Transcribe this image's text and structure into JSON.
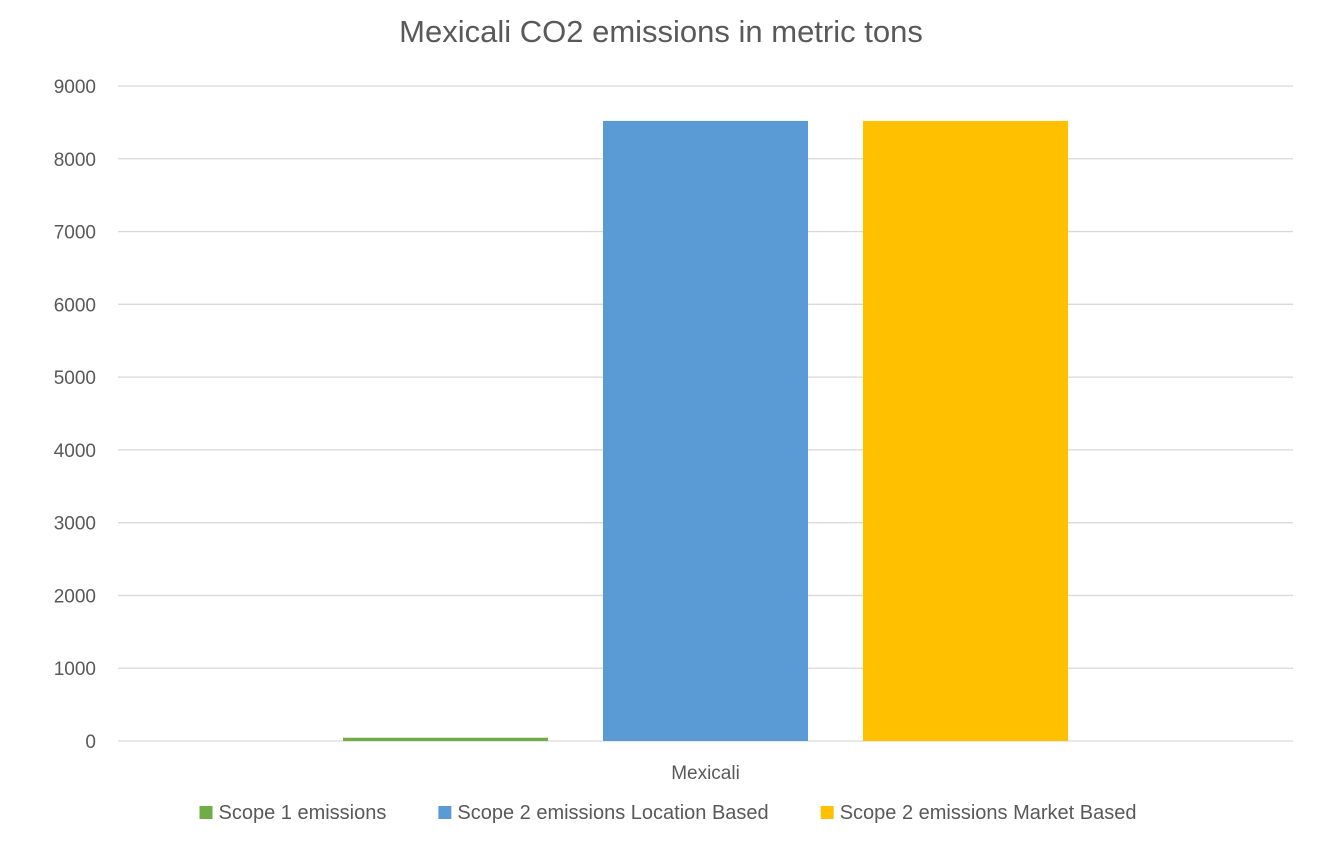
{
  "chart_data": {
    "type": "bar",
    "title": "Mexicali CO2 emissions in metric tons",
    "categories": [
      "Mexicali"
    ],
    "series": [
      {
        "name": "Scope 1 emissions",
        "values": [
          45
        ],
        "color": "#70AD47"
      },
      {
        "name": "Scope 2 emissions Location Based",
        "values": [
          8520
        ],
        "color": "#5B9BD5"
      },
      {
        "name": "Scope 2 emissions Market Based",
        "values": [
          8520
        ],
        "color": "#FFC000"
      }
    ],
    "ylim": [
      0,
      9000
    ],
    "yticks": [
      "0",
      "1000",
      "2000",
      "3000",
      "4000",
      "5000",
      "6000",
      "7000",
      "8000",
      "9000"
    ],
    "xlabel": "",
    "ylabel": "",
    "grid": true,
    "gridColor": "#D9D9D9",
    "legend_position": "bottom"
  }
}
